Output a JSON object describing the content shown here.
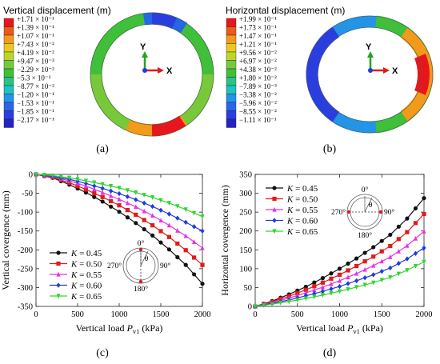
{
  "panels": {
    "a": {
      "legend_title": "Vertical displacement (m)",
      "levels": [
        "+1.71 × 10⁻¹",
        "+1.39 × 10⁻¹",
        "+1.07 × 10⁻¹",
        "+7.43 × 10⁻²",
        "+4.19 × 10⁻²",
        "+9.47 × 10⁻³",
        "−2.29 × 10⁻²",
        "−5.3 × 10⁻²",
        "−8.77 × 10⁻²",
        "−1.20 × 10⁻¹",
        "−1.53 × 10⁻¹",
        "−1.85 × 10⁻¹",
        "−2.17 × 10⁻¹"
      ],
      "axis_y": "Y",
      "axis_x": "X",
      "caption": "(a)"
    },
    "b": {
      "legend_title": "Horizontal displacement (m)",
      "levels": [
        "+1.99 × 10⁻¹",
        "+1.73 × 10⁻¹",
        "+1.47 × 10⁻¹",
        "+1.21 × 10⁻¹",
        "+9.56 × 10⁻²",
        "+6.97 × 10⁻²",
        "+4.38 × 10⁻²",
        "+1.80 × 10⁻²",
        "−7.89 × 10⁻³",
        "−3.38 × 10⁻²",
        "−5.96 × 10⁻²",
        "−8.55 × 10⁻²",
        "−1.11 × 10⁻¹"
      ],
      "axis_y": "Y",
      "axis_x": "X",
      "caption": "(b)"
    },
    "c": {
      "caption": "(c)",
      "inset_labels": [
        "0°",
        "90°",
        "180°",
        "270°",
        "θ"
      ]
    },
    "d": {
      "caption": "(d)",
      "inset_labels": [
        "0°",
        "90°",
        "180°",
        "270°",
        "θ"
      ]
    }
  },
  "legend_colors": [
    "#e8161c",
    "#ee5a1a",
    "#f29a19",
    "#e8c91d",
    "#b9d72a",
    "#78c93a",
    "#3fbf3a",
    "#29c383",
    "#1fc2c4",
    "#2494e6",
    "#2a66e6",
    "#2a3ee0",
    "#2722c8"
  ],
  "chart_data": [
    {
      "type": "line",
      "xlabel": "Vertical load P_v1 (kPa)",
      "ylabel": "Vertical covergence (mm)",
      "xlim": [
        0,
        2000
      ],
      "ylim": [
        -350,
        0
      ],
      "xticks": [
        0,
        500,
        1000,
        1500,
        2000
      ],
      "yticks": [
        0,
        -50,
        -100,
        -150,
        -200,
        -250,
        -300,
        -350
      ],
      "legend_position": "bottom-left",
      "x": [
        0,
        200,
        400,
        600,
        800,
        1000,
        1200,
        1400,
        1600,
        1800,
        2000
      ],
      "series": [
        {
          "name": "K = 0.45",
          "color": "#111111",
          "marker": "circle",
          "values": [
            0,
            -9,
            -27,
            -48,
            -72,
            -99,
            -129,
            -162,
            -199,
            -240,
            -290
          ]
        },
        {
          "name": "K = 0.50",
          "color": "#e01b1b",
          "marker": "square",
          "values": [
            0,
            -8,
            -22,
            -40,
            -60,
            -82,
            -107,
            -135,
            -166,
            -201,
            -240
          ]
        },
        {
          "name": "K = 0.55",
          "color": "#e632e6",
          "marker": "triangle",
          "values": [
            0,
            -6,
            -17,
            -31,
            -48,
            -66,
            -86,
            -109,
            -135,
            -163,
            -195
          ]
        },
        {
          "name": "K = 0.60",
          "color": "#1f3bdc",
          "marker": "diamond",
          "values": [
            0,
            -5,
            -13,
            -24,
            -37,
            -51,
            -67,
            -85,
            -105,
            -127,
            -150
          ]
        },
        {
          "name": "K = 0.65",
          "color": "#2fd62f",
          "marker": "tri-down",
          "values": [
            0,
            -3,
            -9,
            -17,
            -26,
            -36,
            -48,
            -61,
            -76,
            -93,
            -112
          ]
        }
      ]
    },
    {
      "type": "line",
      "xlabel": "Vertical load P_v1 (kPa)",
      "ylabel": "Horizontal covergence (mm)",
      "xlim": [
        0,
        2000
      ],
      "ylim": [
        0,
        350
      ],
      "xticks": [
        0,
        500,
        1000,
        1500,
        2000
      ],
      "yticks": [
        0,
        50,
        100,
        150,
        200,
        250,
        300,
        350
      ],
      "legend_position": "top-left",
      "x": [
        0,
        200,
        400,
        600,
        800,
        1000,
        1200,
        1400,
        1600,
        1800,
        2000
      ],
      "series": [
        {
          "name": "K = 0.45",
          "color": "#111111",
          "marker": "circle",
          "values": [
            0,
            14,
            32,
            52,
            75,
            100,
            127,
            157,
            190,
            233,
            287
          ]
        },
        {
          "name": "K = 0.50",
          "color": "#e01b1b",
          "marker": "square",
          "values": [
            0,
            12,
            27,
            44,
            63,
            84,
            107,
            132,
            160,
            197,
            245
          ]
        },
        {
          "name": "K = 0.55",
          "color": "#e632e6",
          "marker": "triangle",
          "values": [
            0,
            10,
            22,
            36,
            51,
            68,
            87,
            108,
            131,
            161,
            199
          ]
        },
        {
          "name": "K = 0.60",
          "color": "#1f3bdc",
          "marker": "diamond",
          "values": [
            0,
            8,
            17,
            28,
            40,
            53,
            68,
            84,
            102,
            126,
            155
          ]
        },
        {
          "name": "K = 0.65",
          "color": "#2fd62f",
          "marker": "tri-down",
          "values": [
            0,
            6,
            13,
            21,
            30,
            40,
            51,
            63,
            77,
            96,
            118
          ]
        }
      ]
    }
  ]
}
